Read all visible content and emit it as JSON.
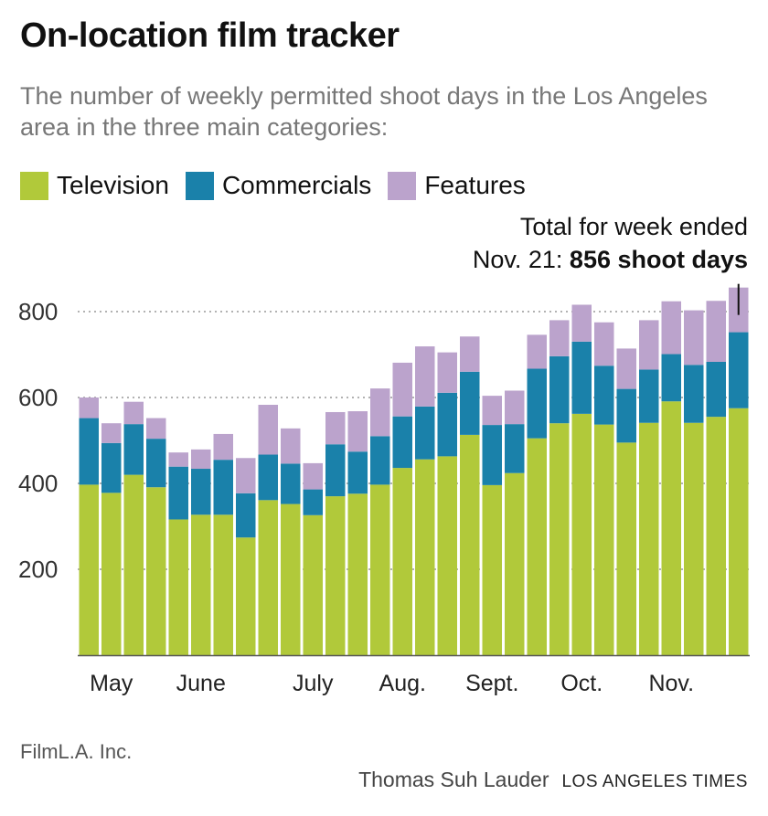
{
  "header": {
    "title": "On-location film tracker",
    "subtitle": "The number of weekly permitted shoot days in the Los Angeles area in the three main categories:"
  },
  "annotation": {
    "line1": "Total for week ended",
    "line2_prefix": "Nov. 21:",
    "line2_value": "856 shoot days"
  },
  "footer": {
    "source": "FilmL.A. Inc.",
    "author": "Thomas Suh Lauder",
    "organization": "LOS ANGELES TIMES"
  },
  "colors": {
    "television": "#b1c93a",
    "commercials": "#1a81aa",
    "features": "#bba3cc",
    "grid": "#999999",
    "axis": "#555555"
  },
  "chart_data": {
    "type": "bar",
    "stacked": true,
    "ylim": [
      0,
      870
    ],
    "yticks": [
      200,
      400,
      600,
      800
    ],
    "grid": true,
    "legend_position": "top",
    "month_labels": [
      {
        "label": "May",
        "week_index": 1
      },
      {
        "label": "June",
        "week_index": 5
      },
      {
        "label": "July",
        "week_index": 10
      },
      {
        "label": "Aug.",
        "week_index": 14
      },
      {
        "label": "Sept.",
        "week_index": 18
      },
      {
        "label": "Oct.",
        "week_index": 22
      },
      {
        "label": "Nov.",
        "week_index": 26
      }
    ],
    "series": [
      {
        "name": "Television",
        "color": "#b1c93a",
        "values": [
          397,
          378,
          420,
          391,
          316,
          327,
          327,
          274,
          361,
          352,
          326,
          370,
          376,
          397,
          436,
          456,
          463,
          513,
          396,
          424,
          505,
          540,
          562,
          537,
          495,
          541,
          591,
          541,
          555,
          575
        ]
      },
      {
        "name": "Commercials",
        "color": "#1a81aa",
        "values": [
          155,
          116,
          118,
          113,
          123,
          107,
          128,
          103,
          106,
          94,
          60,
          121,
          98,
          113,
          120,
          123,
          148,
          147,
          140,
          114,
          162,
          156,
          168,
          137,
          125,
          124,
          110,
          135,
          128,
          177
        ]
      },
      {
        "name": "Features",
        "color": "#bba3cc",
        "values": [
          48,
          46,
          52,
          48,
          33,
          45,
          60,
          82,
          116,
          82,
          61,
          75,
          94,
          111,
          125,
          140,
          94,
          82,
          68,
          78,
          79,
          84,
          86,
          101,
          94,
          115,
          123,
          127,
          142,
          104
        ]
      }
    ],
    "highlight": {
      "week_index": 29,
      "total": 856
    }
  }
}
